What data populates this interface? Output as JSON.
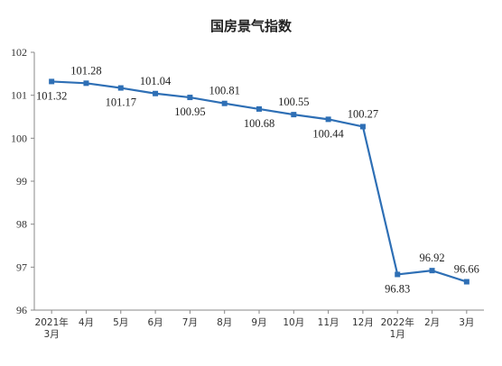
{
  "chart_data": {
    "type": "line",
    "title": "国房景气指数",
    "xlabel": "",
    "ylabel": "",
    "ylim": [
      96,
      102
    ],
    "yticks": [
      96,
      97,
      98,
      99,
      100,
      101,
      102
    ],
    "grid": false,
    "legend": "none",
    "categories": [
      [
        "2021年",
        "3月"
      ],
      [
        "4月"
      ],
      [
        "5月"
      ],
      [
        "6月"
      ],
      [
        "7月"
      ],
      [
        "8月"
      ],
      [
        "9月"
      ],
      [
        "10月"
      ],
      [
        "11月"
      ],
      [
        "12月"
      ],
      [
        "2022年",
        "1月"
      ],
      [
        "2月"
      ],
      [
        "3月"
      ]
    ],
    "series": [
      {
        "values": [
          101.32,
          101.28,
          101.17,
          101.04,
          100.95,
          100.81,
          100.68,
          100.55,
          100.44,
          100.27,
          96.83,
          96.92,
          96.66
        ],
        "labels": [
          "101.32",
          "101.28",
          "101.17",
          "101.04",
          "100.95",
          "100.81",
          "100.68",
          "100.55",
          "100.44",
          "100.27",
          "96.83",
          "96.92",
          "96.66"
        ],
        "label_positions": [
          "below",
          "above",
          "below",
          "above",
          "below",
          "above",
          "below",
          "above",
          "below",
          "above",
          "below",
          "above",
          "above"
        ],
        "color": "#2e6fb5"
      }
    ]
  }
}
